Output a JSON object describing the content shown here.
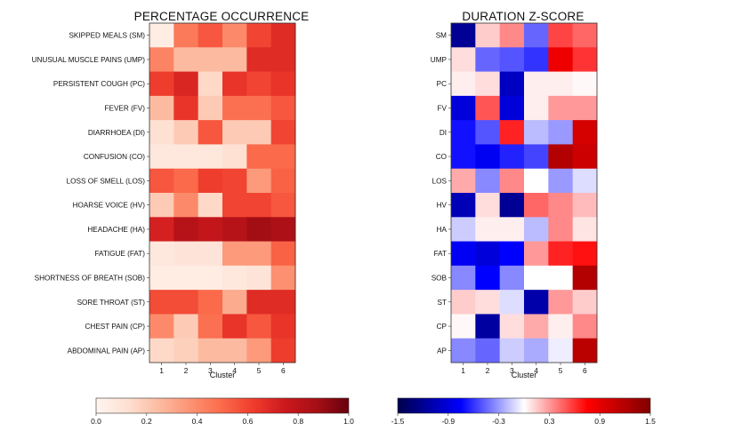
{
  "chart_data": [
    {
      "type": "heatmap",
      "title": "PERCENTAGE OCCURRENCE",
      "xlabel": "Cluster",
      "ylabel": "",
      "x": [
        "1",
        "2",
        "3",
        "4",
        "5",
        "6"
      ],
      "y": [
        "SKIPPED MEALS (SM)",
        "UNUSUAL MUSCLE PAINS (UMP)",
        "PERSISTENT COUGH (PC)",
        "FEVER (FV)",
        "DIARRHOEA (DI)",
        "CONFUSION (CO)",
        "LOSS OF SMELL (LOS)",
        "HOARSE VOICE (HV)",
        "HEADACHE (HA)",
        "FATIGUE (FAT)",
        "SHORTNESS OF BREATH (SOB)",
        "SORE THROAT (ST)",
        "CHEST PAIN (CP)",
        "ABDOMINAL PAIN (AP)"
      ],
      "values": [
        [
          0.05,
          0.45,
          0.55,
          0.4,
          0.6,
          0.68
        ],
        [
          0.42,
          0.25,
          0.25,
          0.25,
          0.68,
          0.68
        ],
        [
          0.62,
          0.7,
          0.15,
          0.65,
          0.6,
          0.65
        ],
        [
          0.25,
          0.65,
          0.2,
          0.48,
          0.48,
          0.55
        ],
        [
          0.12,
          0.2,
          0.55,
          0.2,
          0.2,
          0.6
        ],
        [
          0.08,
          0.08,
          0.08,
          0.12,
          0.5,
          0.5
        ],
        [
          0.55,
          0.5,
          0.62,
          0.6,
          0.35,
          0.52
        ],
        [
          0.2,
          0.4,
          0.15,
          0.6,
          0.6,
          0.55
        ],
        [
          0.72,
          0.82,
          0.78,
          0.82,
          0.88,
          0.85
        ],
        [
          0.08,
          0.1,
          0.1,
          0.35,
          0.35,
          0.52
        ],
        [
          0.05,
          0.05,
          0.05,
          0.08,
          0.1,
          0.38
        ],
        [
          0.58,
          0.58,
          0.5,
          0.3,
          0.68,
          0.68
        ],
        [
          0.4,
          0.2,
          0.48,
          0.65,
          0.55,
          0.65
        ],
        [
          0.15,
          0.18,
          0.25,
          0.25,
          0.35,
          0.62
        ]
      ],
      "colormap": "Reds",
      "colorbar": {
        "min": 0.0,
        "max": 1.0,
        "ticks": [
          "0.0",
          "0.2",
          "0.4",
          "0.6",
          "0.8",
          "1.0"
        ]
      }
    },
    {
      "type": "heatmap",
      "title": "DURATION Z-SCORE",
      "xlabel": "Cluster",
      "ylabel": "",
      "x": [
        "1",
        "2",
        "3",
        "4",
        "5",
        "6"
      ],
      "y": [
        "SM",
        "UMP",
        "PC",
        "FV",
        "DI",
        "CO",
        "LOS",
        "HV",
        "HA",
        "FAT",
        "SOB",
        "ST",
        "CP",
        "AP"
      ],
      "values": [
        [
          -1.2,
          0.15,
          0.35,
          -0.45,
          0.55,
          0.45
        ],
        [
          0.1,
          -0.45,
          -0.5,
          -0.6,
          0.85,
          0.6
        ],
        [
          0.05,
          0.1,
          -1.0,
          0.05,
          0.05,
          0.02
        ],
        [
          -0.9,
          0.5,
          -0.9,
          0.05,
          0.3,
          0.3
        ],
        [
          -0.7,
          -0.5,
          0.65,
          -0.2,
          -0.3,
          1.0
        ],
        [
          -0.7,
          -0.8,
          -0.65,
          -0.55,
          1.2,
          1.05
        ],
        [
          0.25,
          -0.35,
          0.35,
          0.0,
          -0.3,
          -0.1
        ],
        [
          -1.05,
          0.1,
          -1.2,
          0.45,
          0.35,
          0.2
        ],
        [
          -0.15,
          0.05,
          0.05,
          -0.2,
          0.35,
          0.08
        ],
        [
          -0.8,
          -0.9,
          -0.75,
          0.3,
          0.65,
          0.7
        ],
        [
          -0.35,
          -0.75,
          -0.35,
          0.0,
          0.0,
          1.2
        ],
        [
          0.15,
          0.1,
          -0.1,
          -1.1,
          0.3,
          0.15
        ],
        [
          0.02,
          -1.15,
          0.1,
          0.25,
          0.05,
          0.35
        ],
        [
          -0.35,
          -0.45,
          -0.15,
          -0.25,
          -0.05,
          1.15
        ]
      ],
      "colormap": "seismic",
      "colorbar": {
        "min": -1.5,
        "max": 1.5,
        "ticks": [
          "-1.5",
          "-0.9",
          "-0.3",
          "0.3",
          "0.9",
          "1.5"
        ]
      }
    }
  ]
}
